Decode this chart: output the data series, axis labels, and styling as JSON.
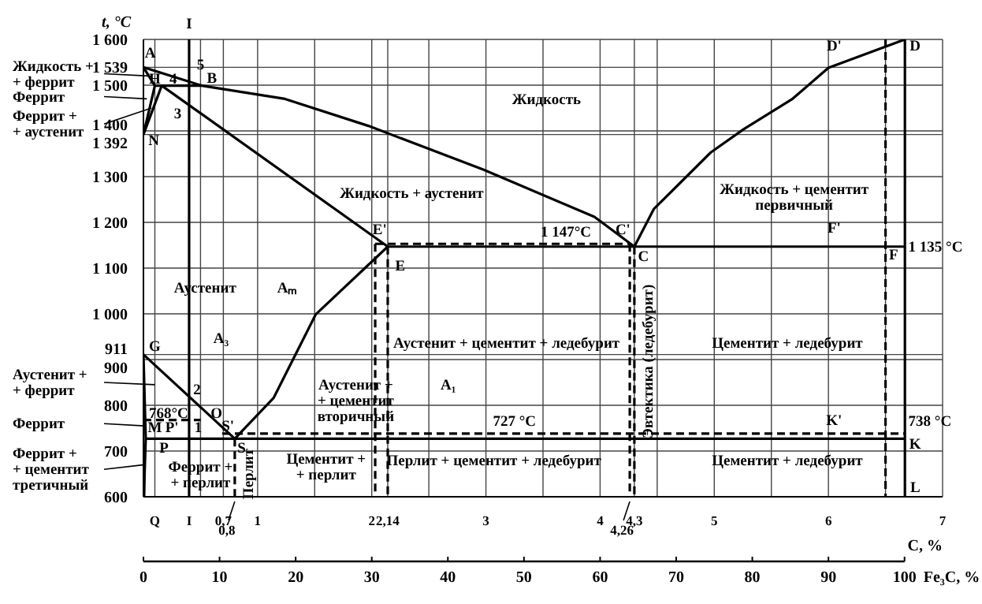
{
  "chart_data": {
    "type": "line",
    "ylabel": "t, °C",
    "xlabel": "C, %",
    "x2label": "Fe₃C, %",
    "xlim": [
      0,
      7
    ],
    "ylim": [
      600,
      1600
    ],
    "x2lim": [
      0,
      105
    ],
    "xticks": [
      {
        "value": 0,
        "label": null
      },
      {
        "value": 0.1,
        "label": "Q"
      },
      {
        "value": 0.4,
        "label": "I"
      },
      {
        "value": 0.5,
        "label": null
      },
      {
        "value": 0.7,
        "label": "0,7"
      },
      1,
      {
        "value": 1.5,
        "label": null
      },
      2,
      {
        "value": 2.14,
        "label": "2,14"
      },
      {
        "value": 2.5,
        "label": null
      },
      3,
      {
        "value": 3.5,
        "label": null
      },
      4,
      {
        "value": 4.3,
        "label": "4,3"
      },
      {
        "value": 4.5,
        "label": null
      },
      5,
      {
        "value": 5.5,
        "label": null
      },
      6,
      {
        "value": 6.5,
        "label": null
      },
      7
    ],
    "x2ticks": [
      0,
      10,
      20,
      30,
      40,
      50,
      60,
      70,
      80,
      90,
      100
    ],
    "yticks": [
      600,
      700,
      800,
      900,
      911,
      {
        "value": 1000,
        "label": "1 000"
      },
      {
        "value": 1100,
        "label": "1 100"
      },
      {
        "value": 1200,
        "label": "1 200"
      },
      {
        "value": 1300,
        "label": "1 300"
      },
      {
        "value": 1392,
        "label": "1 392"
      },
      {
        "value": 1400,
        "label": "1 400"
      },
      {
        "value": 1500,
        "label": "1 500"
      },
      {
        "value": 1539,
        "label": "1 539"
      },
      {
        "value": 1600,
        "label": "1 600"
      }
    ],
    "grid": true,
    "marker": "none",
    "line_style": "solid",
    "series": [
      {
        "color": "#000000",
        "x": [
          0,
          0.51,
          1.24,
          1.97,
          2.98,
          3.95,
          4.3
        ],
        "values": [
          1539,
          1499,
          1470,
          1411,
          1315,
          1212,
          1147
        ]
      },
      {
        "color": "#000000",
        "x": [
          0,
          0.1
        ],
        "values": [
          1539,
          1499
        ]
      },
      {
        "color": "#000000",
        "x": [
          0.1,
          0.51
        ],
        "values": [
          1499,
          1499
        ]
      },
      {
        "color": "#000000",
        "x": [
          0,
          0.1
        ],
        "values": [
          1392,
          1499
        ]
      },
      {
        "color": "#000000",
        "x": [
          0,
          0.16
        ],
        "values": [
          1392,
          1499
        ]
      },
      {
        "color": "#000000",
        "x": [
          0.16,
          2.14
        ],
        "values": [
          1499,
          1147
        ]
      },
      {
        "color": "#000000",
        "x": [
          2.14,
          6.67
        ],
        "values": [
          1147,
          1147
        ]
      },
      {
        "color": "#000000",
        "x": [
          4.3,
          4.47,
          4.97,
          5.26,
          5.68,
          6.0,
          6.67
        ],
        "values": [
          1147,
          1229,
          1353,
          1404,
          1469,
          1538,
          1600
        ]
      },
      {
        "color": "#000000",
        "x": [
          6.67,
          6.67
        ],
        "values": [
          1600,
          600
        ]
      },
      {
        "color": "#000000",
        "x": [
          0,
          0.8
        ],
        "values": [
          911,
          727
        ]
      },
      {
        "color": "#000000",
        "x": [
          0,
          0.02,
          0.01,
          0.006
        ],
        "values": [
          911,
          727,
          650,
          600
        ]
      },
      {
        "color": "#000000",
        "x": [
          0.8,
          1.14,
          1.51,
          2.14
        ],
        "values": [
          727,
          816,
          999,
          1147
        ]
      },
      {
        "color": "#000000",
        "x": [
          0.02,
          6.67
        ],
        "values": [
          727,
          727
        ]
      },
      {
        "color": "#000000",
        "x": [
          0.4,
          0.4
        ],
        "values": [
          1600,
          600
        ]
      },
      {
        "color": "#000000",
        "x": [
          0,
          0.5
        ],
        "values": [
          768,
          768
        ],
        "line_style": "dashed"
      },
      {
        "color": "#000000",
        "x": [
          0.69,
          6.67
        ],
        "values": [
          738,
          738
        ],
        "line_style": "dashed"
      },
      {
        "color": "#000000",
        "x": [
          2.03,
          4.26
        ],
        "values": [
          1153,
          1153
        ],
        "line_style": "dashed"
      },
      {
        "color": "#000000",
        "x": [
          2.03,
          2.03
        ],
        "values": [
          1153,
          600
        ],
        "line_style": "dashed"
      },
      {
        "color": "#000000",
        "x": [
          2.14,
          2.14
        ],
        "values": [
          1147,
          600
        ],
        "line_style": "dashed"
      },
      {
        "color": "#000000",
        "x": [
          4.26,
          4.26
        ],
        "values": [
          1153,
          600
        ],
        "line_style": "dashed"
      },
      {
        "color": "#000000",
        "x": [
          4.3,
          4.3
        ],
        "values": [
          1147,
          600
        ],
        "line_style": "dashed"
      },
      {
        "color": "#000000",
        "x": [
          0.8,
          0.8
        ],
        "values": [
          727,
          600
        ],
        "line_style": "dashed"
      },
      {
        "color": "#000000",
        "x": [
          6.5,
          6.5
        ],
        "values": [
          1600,
          600
        ],
        "line_style": "dashed"
      }
    ],
    "annotations": [
      "Жидкость +\n+ феррит",
      "Феррит",
      "Феррит +\n+ аустенит",
      "Аустенит +\n+ феррит",
      "Феррит",
      "Феррит +\n+ цементит\nтретичный",
      "Перлит",
      "Эвтектика (ледебурит)",
      "Жидкость",
      "Жидкость + аустенит",
      "Жидкость + цементит\nпервичный",
      "Аустенит",
      "Аустенит +\n+ цементит\nвторичный",
      "Аустенит + цементит + ледебурит",
      "Цементит + ледебурит",
      "Перлит + цементит + ледебурит",
      "Цементит + ледебурит",
      "Феррит +\n+ перлит",
      "Цементит +\n+ перлит",
      "727 °C",
      "738 °C",
      "1 135 °C",
      "1 147°C",
      "768°C",
      "A₃",
      "A₁",
      "Aₘ",
      "A",
      "B",
      "H",
      "4",
      "5",
      "3",
      "N",
      "G",
      "2",
      "M",
      "O",
      "S'",
      "S",
      "P",
      "P'",
      "1",
      "E",
      "E'",
      "C'",
      "C",
      "D",
      "D'",
      "F",
      "F'",
      "K",
      "K'",
      "L",
      "I",
      {
        "text": "0,8",
        "x": 0.8,
        "y": 600
      },
      {
        "text": "4,26",
        "x": 4.26,
        "y": 600
      }
    ]
  }
}
